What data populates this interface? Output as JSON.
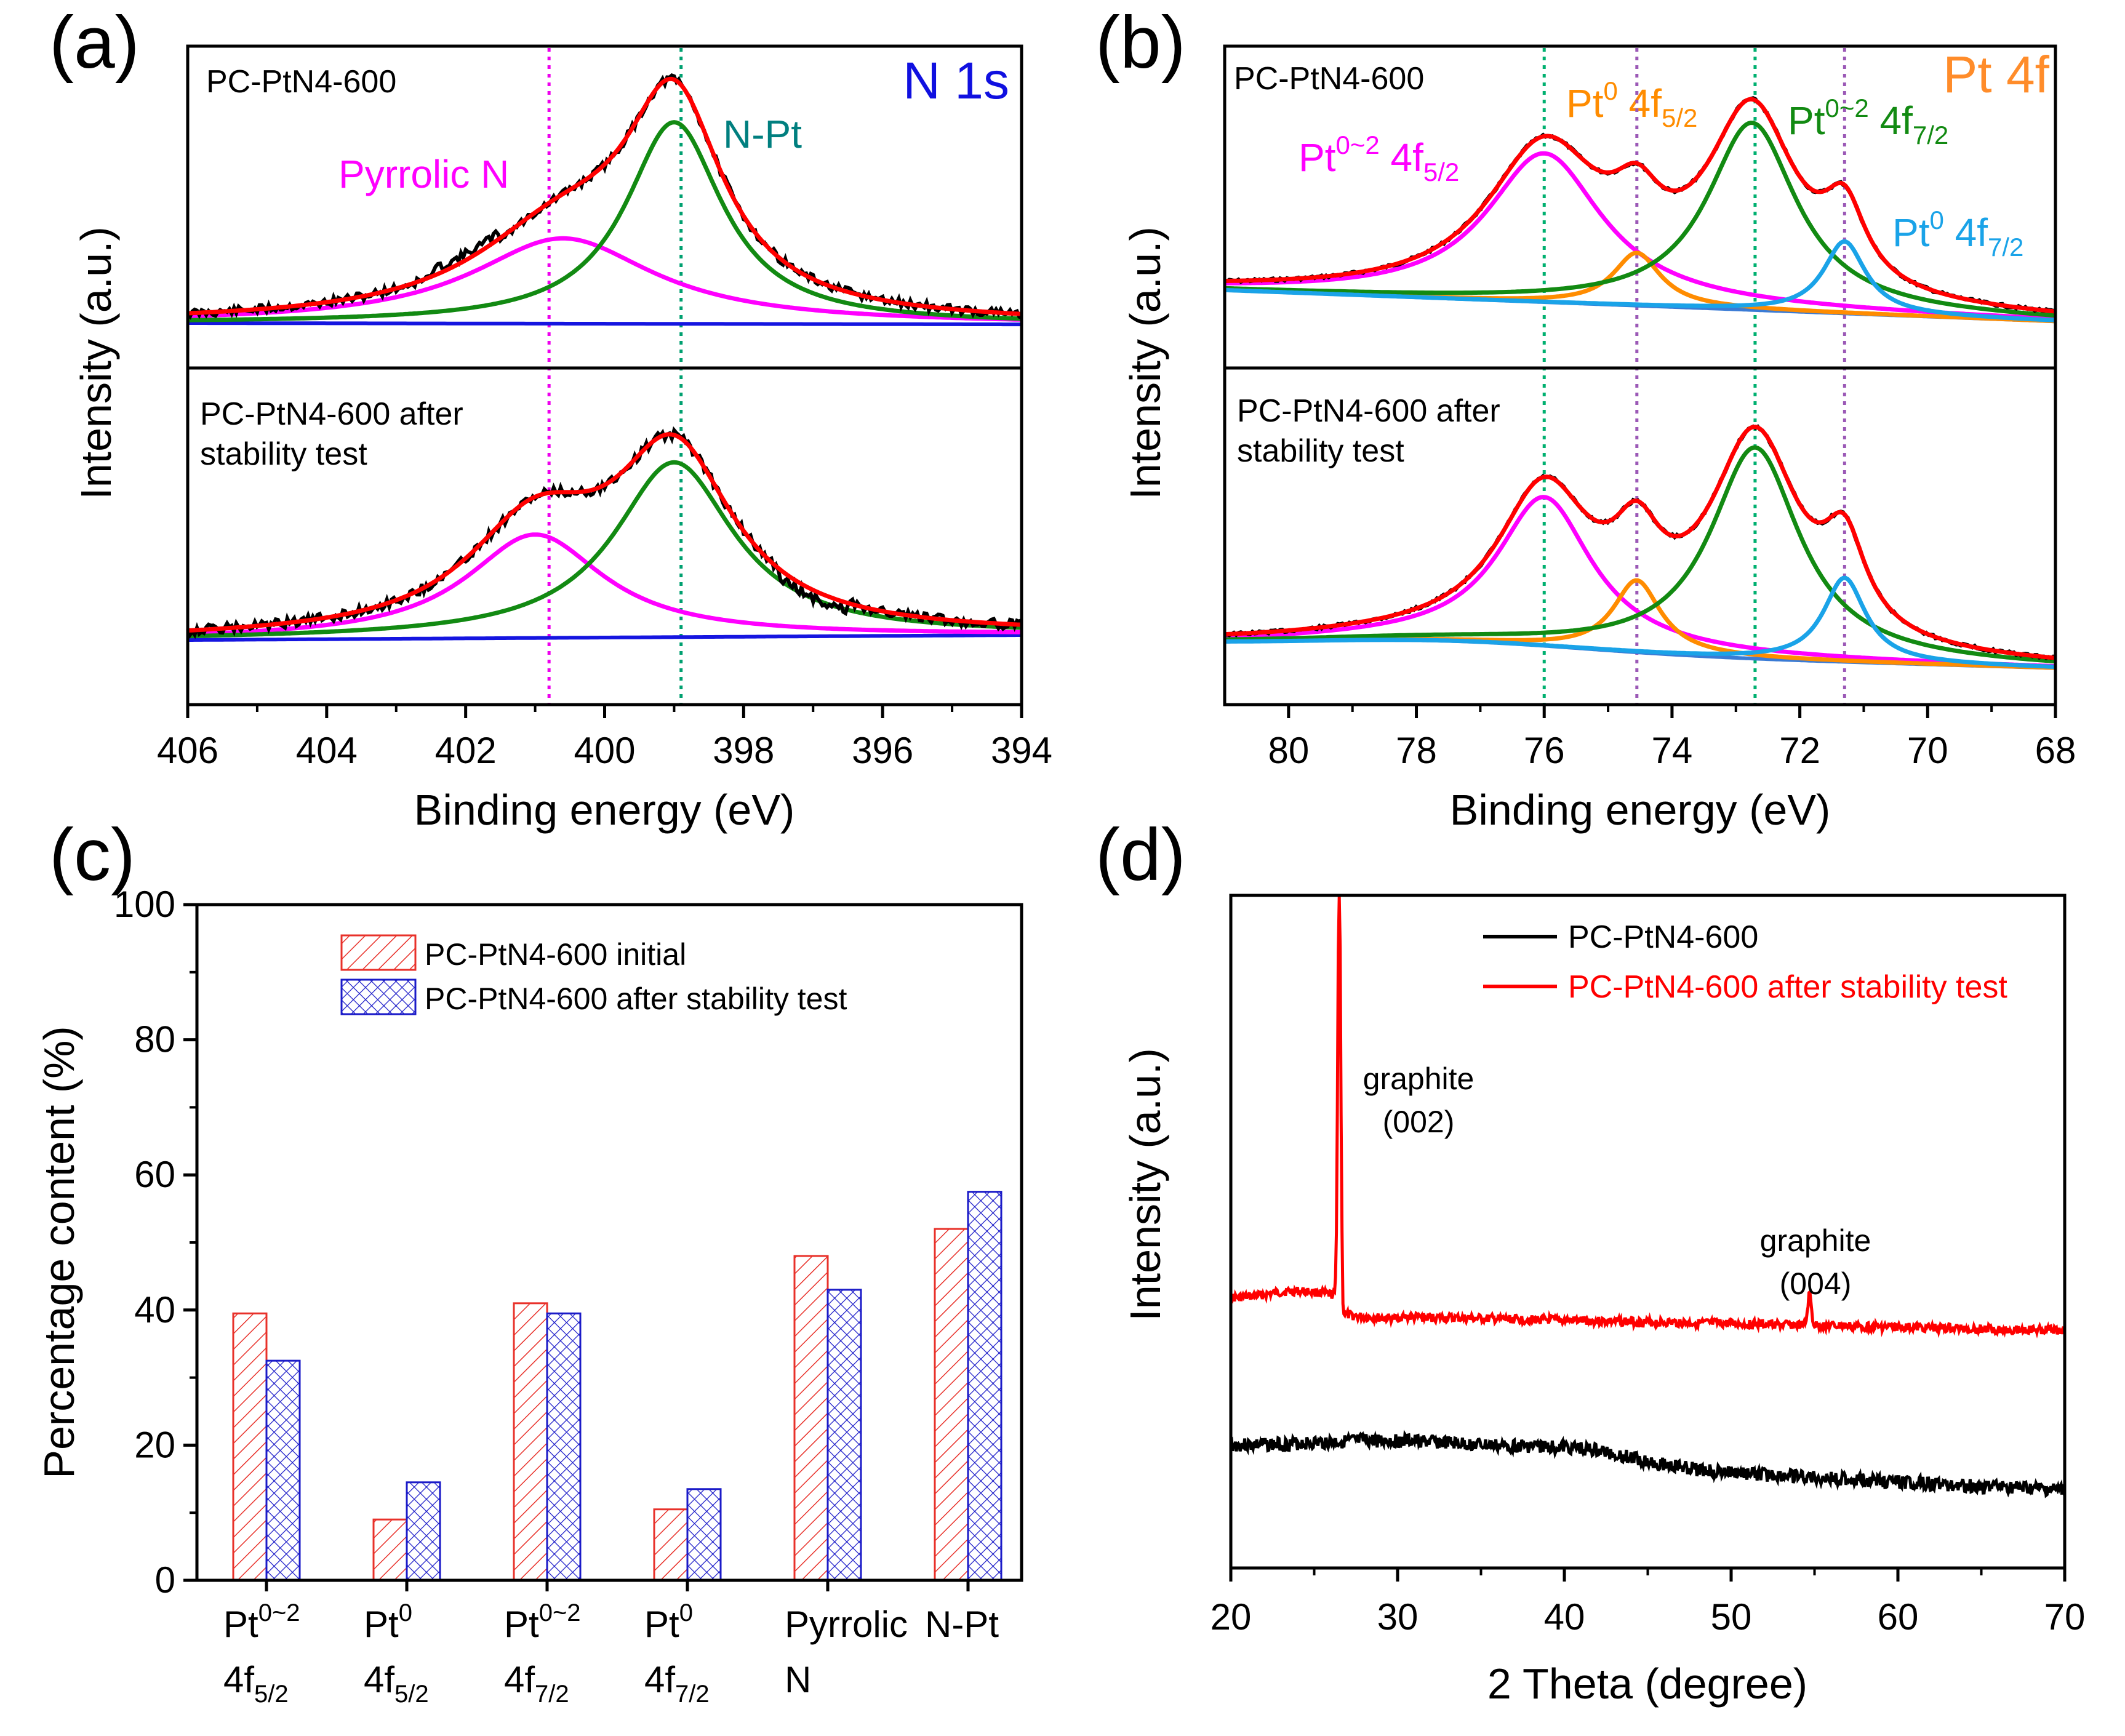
{
  "chart_data": [
    {
      "panel": "(a)",
      "type": "line",
      "title": "N 1s",
      "xlabel": "Binding energy (eV)",
      "ylabel": "Intensity (a.u.)",
      "xlim": [
        406,
        394
      ],
      "xticks": [
        "406",
        "404",
        "402",
        "400",
        "398",
        "396",
        "394"
      ],
      "reference_lines": [
        {
          "x": 400.8,
          "color": "#ee00ee"
        },
        {
          "x": 398.9,
          "color": "#00a070"
        }
      ],
      "subplots": [
        {
          "label": "PC-PtN4-600",
          "peaks": [
            {
              "name": "Pyrrolic N",
              "center": 400.6,
              "height": 0.33,
              "width": 1.6,
              "color": "#ff00ff"
            },
            {
              "name": "N-Pt",
              "center": 399.0,
              "height": 0.78,
              "width": 0.85,
              "color": "#128a12"
            }
          ],
          "annotations": [
            {
              "text": "Pyrrolic N",
              "color": "#ff00ff"
            },
            {
              "text": "N-Pt",
              "color": "#007f7f"
            }
          ]
        },
        {
          "label_lines": [
            "PC-PtN4-600 after",
            "stability test"
          ],
          "peaks": [
            {
              "name": "Pyrrolic N",
              "center": 401.0,
              "height": 0.42,
              "width": 1.2,
              "color": "#ff00ff"
            },
            {
              "name": "N-Pt",
              "center": 399.0,
              "height": 0.71,
              "width": 1.05,
              "color": "#128a12"
            }
          ]
        }
      ]
    },
    {
      "panel": "(b)",
      "type": "line",
      "title": "Pt 4f",
      "xlabel": "Binding energy (eV)",
      "ylabel": "Intensity (a.u.)",
      "xlim": [
        81,
        68
      ],
      "xticks": [
        "80",
        "78",
        "76",
        "74",
        "72",
        "70",
        "68"
      ],
      "reference_lines": [
        {
          "x": 76.0,
          "color": "#00b070"
        },
        {
          "x": 74.55,
          "color": "#9b59b6"
        },
        {
          "x": 72.7,
          "color": "#00b070"
        },
        {
          "x": 71.3,
          "color": "#9b59b6"
        }
      ],
      "subplots": [
        {
          "label": "PC-PtN4-600",
          "peaks": [
            {
              "name": "Pt0~2 4f5/2",
              "center": 76.0,
              "height": 0.62,
              "width": 1.1,
              "color": "#ff00ff"
            },
            {
              "name": "Pt0 4f5/2",
              "center": 74.55,
              "height": 0.22,
              "width": 0.45,
              "color": "#ff8c00"
            },
            {
              "name": "Pt0~2 4f7/2",
              "center": 72.75,
              "height": 0.78,
              "width": 0.85,
              "color": "#128a12"
            },
            {
              "name": "Pt0 4f7/2",
              "center": 71.3,
              "height": 0.3,
              "width": 0.4,
              "color": "#1aa3e8"
            }
          ],
          "annotations": [
            {
              "main": "Pt",
              "sup": "0~2",
              "tail": " 4f",
              "sub": "5/2",
              "color": "#ff00ff"
            },
            {
              "main": "Pt",
              "sup": "0",
              "tail": " 4f",
              "sub": "5/2",
              "color": "#ff8c00"
            },
            {
              "main": "Pt",
              "sup": "0~2",
              "tail": " 4f",
              "sub": "7/2",
              "color": "#128a12"
            },
            {
              "main": "Pt",
              "sup": "0",
              "tail": " 4f",
              "sub": "7/2",
              "color": "#1aa3e8"
            }
          ]
        },
        {
          "label_lines": [
            "PC-PtN4-600 after",
            "stability test"
          ],
          "peaks": [
            {
              "name": "Pt0~2 4f5/2",
              "center": 76.0,
              "height": 0.62,
              "width": 0.9,
              "color": "#ff00ff"
            },
            {
              "name": "Pt0 4f5/2",
              "center": 74.55,
              "height": 0.3,
              "width": 0.45,
              "color": "#ff8c00"
            },
            {
              "name": "Pt0~2 4f7/2",
              "center": 72.7,
              "height": 0.88,
              "width": 0.85,
              "color": "#128a12"
            },
            {
              "name": "Pt0 4f7/2",
              "center": 71.3,
              "height": 0.35,
              "width": 0.4,
              "color": "#1aa3e8"
            }
          ]
        }
      ]
    },
    {
      "panel": "(c)",
      "type": "bar",
      "ylabel": "Percentage content (%)",
      "ylim": [
        0,
        100
      ],
      "yticks": [
        "0",
        "20",
        "40",
        "60",
        "80",
        "100"
      ],
      "categories": [
        {
          "line1": {
            "main": "Pt",
            "sup": "0~2"
          },
          "line2": {
            "main": "4f",
            "sub": "5/2"
          }
        },
        {
          "line1": {
            "main": "Pt",
            "sup": "0"
          },
          "line2": {
            "main": "4f",
            "sub": "5/2"
          }
        },
        {
          "line1": {
            "main": "Pt",
            "sup": "0~2"
          },
          "line2": {
            "main": "4f",
            "sub": "7/2"
          }
        },
        {
          "line1": {
            "main": "Pt",
            "sup": "0"
          },
          "line2": {
            "main": "4f",
            "sub": "7/2"
          }
        },
        {
          "line1": {
            "main": "Pyrrolic"
          },
          "line2": {
            "main": "N"
          }
        },
        {
          "line1": {
            "main": "N-Pt"
          }
        }
      ],
      "series": [
        {
          "name": "PC-PtN4-600 initial",
          "values": [
            39.5,
            9.0,
            41.0,
            10.5,
            48.0,
            52.0
          ],
          "color": "#e8312a",
          "pattern": "diagonal-hatch"
        },
        {
          "name": "PC-PtN4-600 after stability test",
          "values": [
            32.5,
            14.5,
            39.5,
            13.5,
            43.0,
            57.5
          ],
          "color": "#1b1bc8",
          "pattern": "cross-hatch"
        }
      ]
    },
    {
      "panel": "(d)",
      "type": "line",
      "xlabel": "2 Theta (degree)",
      "ylabel": "Intensity (a.u.)",
      "xlim": [
        20,
        70
      ],
      "xticks": [
        "20",
        "30",
        "40",
        "50",
        "60",
        "70"
      ],
      "series": [
        {
          "name": "PC-PtN4-600",
          "color": "#000000"
        },
        {
          "name": "PC-PtN4-600 after stability test",
          "color": "#ff0000"
        }
      ],
      "annotations": [
        {
          "lines": [
            "graphite",
            "(002)"
          ],
          "x": 26.5
        },
        {
          "lines": [
            "graphite",
            "(004)"
          ],
          "x": 54.7
        }
      ]
    }
  ]
}
